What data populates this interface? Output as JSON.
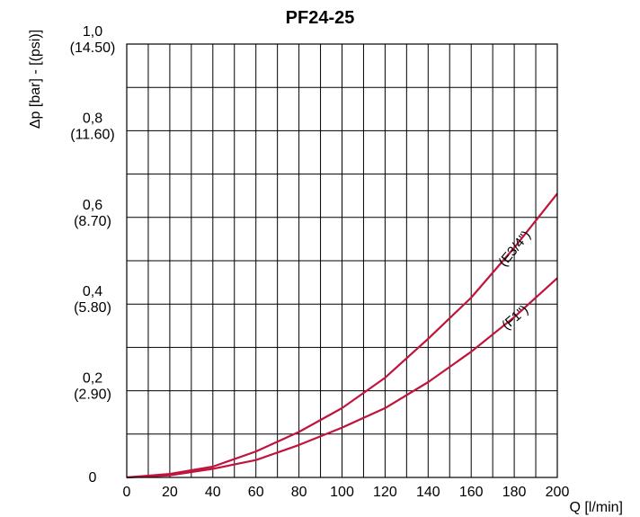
{
  "chart_data": {
    "type": "line",
    "title": "PF24-25",
    "xlabel": "Q [l/min]",
    "ylabel": "Δp [bar] - [(psi)]",
    "xlim": [
      0,
      200
    ],
    "ylim": [
      0,
      1.0
    ],
    "grid": true,
    "x_ticks": [
      {
        "value": 0,
        "label": "0"
      },
      {
        "value": 20,
        "label": "20"
      },
      {
        "value": 40,
        "label": "40"
      },
      {
        "value": 60,
        "label": "60"
      },
      {
        "value": 80,
        "label": "80"
      },
      {
        "value": 100,
        "label": "100"
      },
      {
        "value": 120,
        "label": "120"
      },
      {
        "value": 140,
        "label": "140"
      },
      {
        "value": 160,
        "label": "160"
      },
      {
        "value": 180,
        "label": "180"
      },
      {
        "value": 200,
        "label": "200"
      }
    ],
    "y_ticks": [
      {
        "value": 0,
        "label": "0",
        "psi": ""
      },
      {
        "value": 0.2,
        "label": "0,2",
        "psi": "(2.90)"
      },
      {
        "value": 0.4,
        "label": "0,4",
        "psi": "(5.80)"
      },
      {
        "value": 0.6,
        "label": "0,6",
        "psi": "(8.70)"
      },
      {
        "value": 0.8,
        "label": "0,8",
        "psi": "(11.60)"
      },
      {
        "value": 1.0,
        "label": "1,0",
        "psi": "(14.50)"
      }
    ],
    "series": [
      {
        "name": "E3/4\"",
        "label": "(E3/4\")",
        "color": "#c0143c",
        "x": [
          0,
          20,
          40,
          60,
          80,
          100,
          120,
          140,
          160,
          180,
          200
        ],
        "y": [
          0.0,
          0.008,
          0.025,
          0.06,
          0.105,
          0.16,
          0.23,
          0.32,
          0.415,
          0.53,
          0.655
        ]
      },
      {
        "name": "F1\"",
        "label": "(F1\")",
        "color": "#c0143c",
        "x": [
          0,
          20,
          40,
          60,
          80,
          100,
          120,
          140,
          160,
          180,
          200
        ],
        "y": [
          0.0,
          0.005,
          0.02,
          0.04,
          0.075,
          0.115,
          0.16,
          0.22,
          0.29,
          0.37,
          0.46
        ]
      }
    ]
  }
}
